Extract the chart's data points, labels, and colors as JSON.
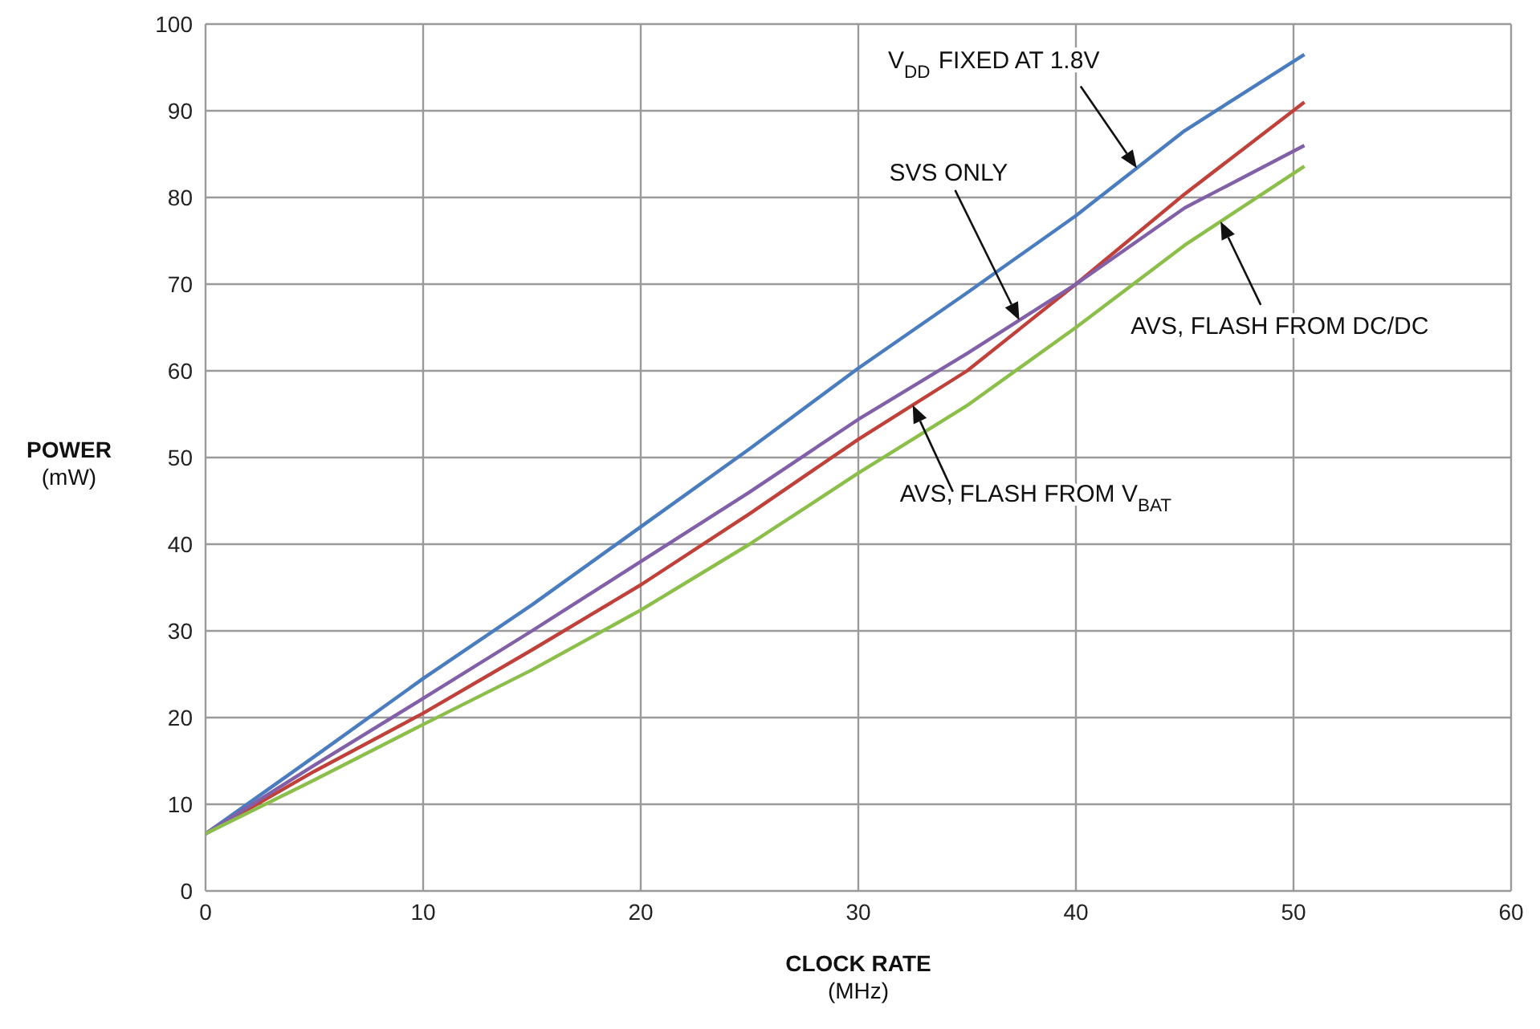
{
  "chart_data": {
    "type": "line",
    "xlabel": "CLOCK RATE (MHz)",
    "ylabel": "POWER (mW)",
    "x": [
      0,
      5,
      10,
      15,
      20,
      25,
      30,
      35,
      40,
      45,
      50.5
    ],
    "series": [
      {
        "color": "#4a7cc0",
        "values": [
          6.6,
          15.5,
          24.5,
          33,
          42,
          51,
          60.3,
          69,
          77.9,
          87.7,
          96.5
        ]
      },
      {
        "color": "#c0403a",
        "values": [
          6.6,
          13.8,
          20.5,
          27.8,
          35.3,
          43.5,
          52.1,
          60,
          70,
          80.4,
          91
        ]
      },
      {
        "color": "#8260a8",
        "values": [
          6.6,
          14.5,
          22.2,
          30,
          38,
          46,
          54.4,
          62,
          70,
          78.8,
          86
        ]
      },
      {
        "color": "#8cbf4a",
        "values": [
          6.6,
          12.8,
          19.2,
          25.5,
          32.4,
          40,
          48.2,
          56,
          65,
          74.5,
          83.6
        ]
      }
    ],
    "xlim": [
      0,
      60
    ],
    "xticks": [
      0,
      10,
      20,
      30,
      40,
      50,
      60
    ],
    "ylim": [
      0,
      100
    ],
    "yticks": [
      0,
      10,
      20,
      30,
      40,
      50,
      60,
      70,
      80,
      90,
      100
    ],
    "grid": true,
    "legend": false,
    "marker": "none",
    "line_style": "solid",
    "annotations": [
      "V$_{DD}$ FIXED AT 1.8V",
      "SVS ONLY",
      "AVS, FLASH FROM DC/DC",
      "AVS, FLASH FROM V$_{BAT}$"
    ]
  }
}
